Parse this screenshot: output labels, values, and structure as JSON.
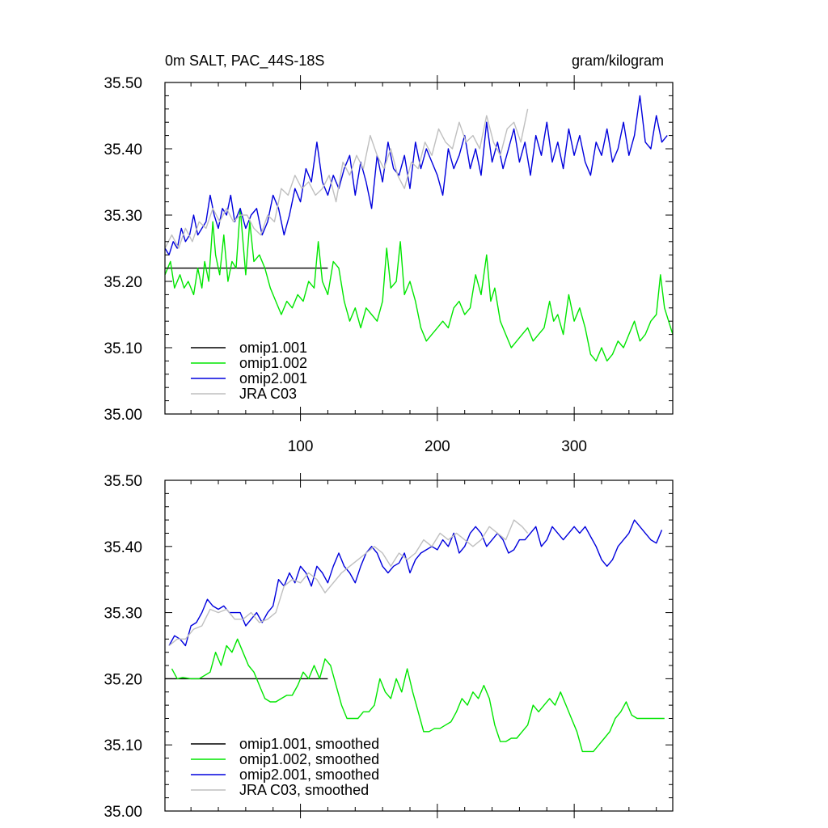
{
  "chart_data": [
    {
      "type": "line",
      "panel": "top",
      "title": "0m SALT, PAC_44S-18S",
      "units": "gram/kilogram",
      "xlim": [
        1,
        372
      ],
      "ylim": [
        35.0,
        35.5
      ],
      "x_ticks": [
        100,
        200,
        300
      ],
      "x_tick_labels": [
        "100",
        "200",
        "300"
      ],
      "y_ticks": [
        35.0,
        35.1,
        35.2,
        35.3,
        35.4,
        35.5
      ],
      "y_tick_labels": [
        "35.00",
        "35.10",
        "35.20",
        "35.30",
        "35.40",
        "35.50"
      ],
      "legend_position": "bottom-left",
      "series": [
        {
          "name": "omip1.001",
          "color": "#000000",
          "x": [
            1,
            120
          ],
          "y": [
            35.22,
            35.22
          ],
          "visible_overlaid_by": "omip1.002"
        },
        {
          "name": "omip1.002",
          "color": "#00e600",
          "x": [
            1,
            5,
            8,
            12,
            15,
            18,
            22,
            25,
            28,
            30,
            33,
            36,
            38,
            41,
            44,
            47,
            50,
            53,
            56,
            60,
            63,
            66,
            70,
            74,
            78,
            82,
            86,
            90,
            94,
            98,
            102,
            106,
            110,
            113,
            116,
            120,
            124,
            128,
            132,
            136,
            140,
            144,
            148,
            152,
            156,
            160,
            163,
            166,
            170,
            173,
            176,
            180,
            184,
            188,
            192,
            196,
            200,
            204,
            208,
            212,
            216,
            220,
            224,
            228,
            232,
            236,
            239,
            242,
            246,
            250,
            254,
            258,
            262,
            266,
            270,
            274,
            278,
            282,
            285,
            288,
            292,
            296,
            300,
            304,
            308,
            312,
            316,
            320,
            324,
            328,
            332,
            336,
            340,
            344,
            348,
            352,
            356,
            360,
            363,
            366,
            369,
            372
          ],
          "y": [
            35.21,
            35.23,
            35.19,
            35.21,
            35.19,
            35.2,
            35.18,
            35.22,
            35.19,
            35.23,
            35.2,
            35.29,
            35.24,
            35.21,
            35.27,
            35.2,
            35.23,
            35.22,
            35.31,
            35.21,
            35.29,
            35.23,
            35.24,
            35.22,
            35.19,
            35.17,
            35.15,
            35.17,
            35.16,
            35.18,
            35.17,
            35.2,
            35.19,
            35.26,
            35.2,
            35.18,
            35.23,
            35.22,
            35.17,
            35.14,
            35.16,
            35.13,
            35.16,
            35.15,
            35.14,
            35.17,
            35.25,
            35.19,
            35.2,
            35.26,
            35.18,
            35.2,
            35.17,
            35.13,
            35.11,
            35.12,
            35.13,
            35.14,
            35.13,
            35.16,
            35.17,
            35.15,
            35.16,
            35.21,
            35.18,
            35.24,
            35.17,
            35.19,
            35.14,
            35.12,
            35.1,
            35.11,
            35.12,
            35.13,
            35.11,
            35.12,
            35.13,
            35.17,
            35.14,
            35.15,
            35.12,
            35.18,
            35.14,
            35.16,
            35.13,
            35.09,
            35.08,
            35.1,
            35.08,
            35.09,
            35.11,
            35.1,
            35.12,
            35.14,
            35.11,
            35.12,
            35.14,
            35.15,
            35.21,
            35.16,
            35.14,
            35.12
          ]
        },
        {
          "name": "omip2.001",
          "color": "#0000dd",
          "x": [
            1,
            4,
            7,
            10,
            13,
            16,
            19,
            22,
            25,
            28,
            31,
            34,
            37,
            40,
            43,
            46,
            49,
            52,
            56,
            60,
            64,
            68,
            72,
            76,
            80,
            84,
            88,
            92,
            96,
            100,
            104,
            108,
            112,
            116,
            120,
            124,
            128,
            132,
            136,
            140,
            144,
            148,
            152,
            156,
            160,
            164,
            168,
            172,
            176,
            180,
            184,
            188,
            192,
            196,
            200,
            204,
            208,
            212,
            216,
            220,
            224,
            228,
            232,
            236,
            240,
            244,
            248,
            252,
            256,
            260,
            264,
            268,
            272,
            276,
            280,
            284,
            288,
            292,
            296,
            300,
            304,
            308,
            312,
            316,
            320,
            324,
            328,
            332,
            336,
            340,
            344,
            348,
            352,
            356,
            360,
            364,
            368
          ],
          "y": [
            35.25,
            35.24,
            35.26,
            35.25,
            35.28,
            35.26,
            35.27,
            35.3,
            35.27,
            35.28,
            35.29,
            35.33,
            35.3,
            35.28,
            35.31,
            35.3,
            35.33,
            35.29,
            35.31,
            35.28,
            35.3,
            35.31,
            35.27,
            35.29,
            35.33,
            35.31,
            35.27,
            35.3,
            35.34,
            35.32,
            35.37,
            35.35,
            35.41,
            35.35,
            35.33,
            35.36,
            35.34,
            35.37,
            35.39,
            35.33,
            35.38,
            35.35,
            35.31,
            35.39,
            35.35,
            35.41,
            35.37,
            35.36,
            35.39,
            35.34,
            35.41,
            35.37,
            35.4,
            35.38,
            35.36,
            35.33,
            35.4,
            35.37,
            35.39,
            35.42,
            35.37,
            35.4,
            35.36,
            35.44,
            35.38,
            35.41,
            35.37,
            35.4,
            35.43,
            35.38,
            35.41,
            35.36,
            35.42,
            35.39,
            35.44,
            35.38,
            35.41,
            35.37,
            35.43,
            35.39,
            35.42,
            35.38,
            35.36,
            35.41,
            35.39,
            35.43,
            35.38,
            35.4,
            35.44,
            35.39,
            35.42,
            35.48,
            35.41,
            35.4,
            35.45,
            35.41,
            35.42
          ]
        },
        {
          "name": "JRA C03",
          "color": "#bfbfbf",
          "x": [
            1,
            6,
            11,
            16,
            21,
            26,
            31,
            36,
            41,
            46,
            51,
            56,
            61,
            66,
            71,
            76,
            81,
            86,
            91,
            96,
            101,
            106,
            111,
            116,
            121,
            126,
            131,
            136,
            141,
            146,
            151,
            156,
            161,
            166,
            171,
            176,
            181,
            186,
            191,
            196,
            201,
            206,
            211,
            216,
            221,
            226,
            231,
            236,
            241,
            246,
            251,
            256,
            261,
            266
          ],
          "y": [
            35.25,
            35.27,
            35.25,
            35.28,
            35.26,
            35.29,
            35.28,
            35.31,
            35.29,
            35.31,
            35.29,
            35.3,
            35.3,
            35.28,
            35.27,
            35.3,
            35.29,
            35.34,
            35.33,
            35.36,
            35.34,
            35.35,
            35.33,
            35.34,
            35.36,
            35.32,
            35.38,
            35.36,
            35.39,
            35.37,
            35.42,
            35.39,
            35.37,
            35.4,
            35.36,
            35.34,
            35.38,
            35.37,
            35.41,
            35.39,
            35.43,
            35.41,
            35.4,
            35.44,
            35.41,
            35.42,
            35.4,
            35.45,
            35.41,
            35.39,
            35.43,
            35.44,
            35.41,
            35.46
          ]
        }
      ]
    },
    {
      "type": "line",
      "panel": "bottom",
      "title": "",
      "xlim": [
        1,
        372
      ],
      "ylim": [
        35.0,
        35.5
      ],
      "x_ticks": [
        100,
        200,
        300
      ],
      "y_ticks": [
        35.0,
        35.1,
        35.2,
        35.3,
        35.4,
        35.5
      ],
      "y_tick_labels": [
        "35.00",
        "35.10",
        "35.20",
        "35.30",
        "35.40",
        "35.50"
      ],
      "legend_position": "bottom-left",
      "series": [
        {
          "name": "omip1.001, smoothed",
          "color": "#000000",
          "x": [
            1,
            120
          ],
          "y": [
            35.2,
            35.2
          ],
          "visible_overlaid_by": "omip1.002, smoothed"
        },
        {
          "name": "omip1.002, smoothed",
          "color": "#00e600",
          "x": [
            6,
            10,
            14,
            20,
            26,
            30,
            34,
            38,
            42,
            46,
            50,
            54,
            58,
            62,
            66,
            70,
            74,
            78,
            82,
            86,
            90,
            94,
            98,
            102,
            106,
            110,
            114,
            118,
            122,
            126,
            130,
            134,
            138,
            142,
            146,
            150,
            154,
            158,
            162,
            166,
            170,
            174,
            178,
            182,
            186,
            190,
            194,
            198,
            202,
            206,
            210,
            214,
            218,
            222,
            226,
            230,
            234,
            238,
            242,
            246,
            250,
            254,
            258,
            262,
            266,
            270,
            274,
            278,
            282,
            286,
            290,
            294,
            298,
            302,
            306,
            310,
            314,
            318,
            322,
            326,
            330,
            334,
            338,
            342,
            346,
            350,
            354,
            358,
            362,
            366
          ],
          "y": [
            35.215,
            35.2,
            35.202,
            35.2,
            35.2,
            35.205,
            35.21,
            35.24,
            35.22,
            35.25,
            35.24,
            35.26,
            35.24,
            35.22,
            35.21,
            35.19,
            35.17,
            35.165,
            35.165,
            35.17,
            35.175,
            35.175,
            35.19,
            35.21,
            35.2,
            35.22,
            35.2,
            35.23,
            35.22,
            35.19,
            35.16,
            35.14,
            35.14,
            35.14,
            35.15,
            35.15,
            35.16,
            35.2,
            35.18,
            35.17,
            35.2,
            35.18,
            35.215,
            35.18,
            35.15,
            35.12,
            35.12,
            35.125,
            35.125,
            35.13,
            35.135,
            35.15,
            35.17,
            35.16,
            35.18,
            35.17,
            35.19,
            35.17,
            35.13,
            35.105,
            35.105,
            35.11,
            35.11,
            35.12,
            35.13,
            35.16,
            35.15,
            35.16,
            35.17,
            35.16,
            35.18,
            35.16,
            35.14,
            35.12,
            35.09,
            35.09,
            35.09,
            35.1,
            35.11,
            35.12,
            35.14,
            35.15,
            35.165,
            35.145,
            35.14,
            35.14,
            35.14,
            35.14,
            35.14,
            35.14
          ]
        },
        {
          "name": "omip2.001, smoothed",
          "color": "#0000dd",
          "x": [
            4,
            8,
            12,
            16,
            20,
            24,
            28,
            32,
            36,
            40,
            44,
            48,
            52,
            56,
            60,
            64,
            68,
            72,
            76,
            80,
            84,
            88,
            92,
            96,
            100,
            104,
            108,
            112,
            116,
            120,
            124,
            128,
            132,
            136,
            140,
            144,
            148,
            152,
            156,
            160,
            164,
            168,
            172,
            176,
            180,
            184,
            188,
            192,
            196,
            200,
            204,
            208,
            212,
            216,
            220,
            224,
            228,
            232,
            236,
            240,
            244,
            248,
            252,
            256,
            260,
            264,
            268,
            272,
            276,
            280,
            284,
            288,
            292,
            296,
            300,
            304,
            308,
            312,
            316,
            320,
            324,
            328,
            332,
            336,
            340,
            344,
            348,
            352,
            356,
            360,
            364
          ],
          "y": [
            35.25,
            35.265,
            35.26,
            35.25,
            35.28,
            35.285,
            35.3,
            35.32,
            35.31,
            35.305,
            35.31,
            35.3,
            35.3,
            35.3,
            35.28,
            35.29,
            35.3,
            35.285,
            35.3,
            35.31,
            35.35,
            35.34,
            35.36,
            35.345,
            35.37,
            35.36,
            35.34,
            35.37,
            35.36,
            35.345,
            35.37,
            35.39,
            35.37,
            35.36,
            35.345,
            35.37,
            35.39,
            35.4,
            35.39,
            35.37,
            35.36,
            35.37,
            35.375,
            35.39,
            35.36,
            35.38,
            35.39,
            35.395,
            35.4,
            35.395,
            35.41,
            35.4,
            35.42,
            35.39,
            35.4,
            35.42,
            35.43,
            35.42,
            35.4,
            35.41,
            35.42,
            35.41,
            35.39,
            35.395,
            35.41,
            35.41,
            35.42,
            35.43,
            35.4,
            35.41,
            35.43,
            35.42,
            35.41,
            35.42,
            35.43,
            35.42,
            35.43,
            35.415,
            35.4,
            35.38,
            35.37,
            35.38,
            35.4,
            35.41,
            35.42,
            35.44,
            35.43,
            35.42,
            35.41,
            35.405,
            35.425
          ]
        },
        {
          "name": "JRA C03, smoothed",
          "color": "#bfbfbf",
          "x": [
            4,
            10,
            16,
            22,
            28,
            34,
            40,
            46,
            52,
            58,
            64,
            70,
            76,
            82,
            88,
            94,
            100,
            106,
            112,
            118,
            124,
            130,
            136,
            142,
            148,
            154,
            160,
            166,
            172,
            178,
            184,
            190,
            196,
            202,
            208,
            214,
            220,
            226,
            232,
            238,
            244,
            250,
            256,
            262,
            266
          ],
          "y": [
            35.25,
            35.26,
            35.26,
            35.275,
            35.28,
            35.305,
            35.3,
            35.305,
            35.29,
            35.29,
            35.3,
            35.285,
            35.29,
            35.3,
            35.34,
            35.35,
            35.345,
            35.36,
            35.35,
            35.33,
            35.345,
            35.36,
            35.37,
            35.38,
            35.39,
            35.4,
            35.39,
            35.37,
            35.39,
            35.38,
            35.39,
            35.41,
            35.4,
            35.42,
            35.41,
            35.42,
            35.41,
            35.4,
            35.41,
            35.43,
            35.42,
            35.41,
            35.44,
            35.43,
            35.42
          ]
        }
      ]
    }
  ]
}
